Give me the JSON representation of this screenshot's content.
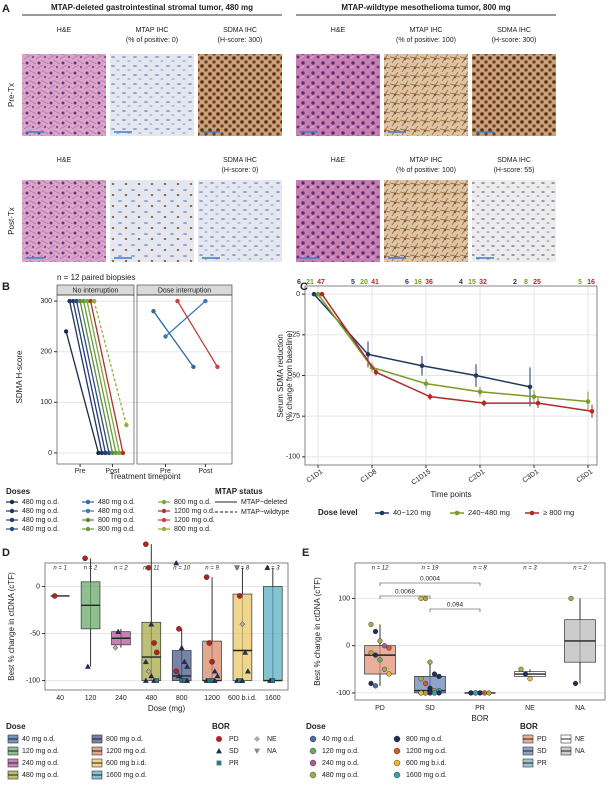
{
  "panel_a": {
    "label": "A",
    "groups": [
      {
        "title": "MTAP-deleted gastrointestinal stromal tumor, 480 mg"
      },
      {
        "title": "MTAP-wildtype mesothelioma tumor, 800 mg"
      }
    ],
    "rows": [
      {
        "label": "Pre-Tx",
        "cells": [
          [
            "H&E"
          ],
          [
            "MTAP IHC",
            "(% of positive: 0)"
          ],
          [
            "SDMA IHC",
            "(H-score: 300)"
          ],
          [
            "H&E"
          ],
          [
            "MTAP IHC",
            "(% of positive: 100)"
          ],
          [
            "SDMA IHC",
            "(H-score: 300)"
          ]
        ]
      },
      {
        "label": "Post-Tx",
        "cells": [
          [
            "H&E"
          ],
          [],
          [
            "SDMA IHC",
            "(H-score: 0)"
          ],
          [
            "H&E"
          ],
          [
            "MTAP IHC",
            "(% of positive: 100)"
          ],
          [
            "SDMA IHC",
            "(H-score: 55)"
          ]
        ]
      }
    ]
  },
  "chart_data": [
    {
      "type": "paired-line",
      "label": "B",
      "subtitle": "n = 12 paired biopsies",
      "facets": [
        "No interruption",
        "Dose interruption"
      ],
      "categories": [
        "Pre",
        "Post"
      ],
      "xlabel": "Treatment timepoint",
      "ylabel": "SDMA H-score",
      "ylim": [
        -10,
        310
      ],
      "yticks": [
        0,
        100,
        200,
        300
      ],
      "grid": true,
      "legend_title": "Doses",
      "status_title": "MTAP status",
      "statuses": [
        {
          "name": "MTAP−deleted",
          "dash": "solid"
        },
        {
          "name": "MTAP−wildtype",
          "dash": "dashed"
        }
      ],
      "series": [
        {
          "name": "480 mg o.d.",
          "color": "#1b2a4a",
          "facet": 0,
          "status": 0,
          "values": [
            240,
            0
          ]
        },
        {
          "name": "480 mg o.d.",
          "color": "#1f3563",
          "facet": 0,
          "status": 0,
          "values": [
            300,
            0
          ]
        },
        {
          "name": "480 mg o.d.",
          "color": "#233d72",
          "facet": 0,
          "status": 0,
          "values": [
            300,
            0
          ]
        },
        {
          "name": "480 mg o.d.",
          "color": "#2a4a85",
          "facet": 0,
          "status": 0,
          "values": [
            300,
            0
          ]
        },
        {
          "name": "480 mg o.d.",
          "color": "#2f6aa0",
          "facet": 1,
          "status": 0,
          "values": [
            280,
            170
          ]
        },
        {
          "name": "480 mg o.d.",
          "color": "#3a7ab0",
          "facet": 1,
          "status": 0,
          "values": [
            230,
            300
          ]
        },
        {
          "name": "800 mg o.d.",
          "color": "#5a8a3a",
          "facet": 0,
          "status": 0,
          "values": [
            300,
            0
          ]
        },
        {
          "name": "800 mg o.d.",
          "color": "#6a9a3a",
          "facet": 0,
          "status": 0,
          "values": [
            300,
            0
          ]
        },
        {
          "name": "800 mg o.d.",
          "color": "#7aaa3a",
          "facet": 0,
          "status": 0,
          "values": [
            300,
            0
          ]
        },
        {
          "name": "1200 mg o.d.",
          "color": "#b03030",
          "facet": 0,
          "status": 0,
          "values": [
            300,
            0
          ]
        },
        {
          "name": "1200 mg o.d.",
          "color": "#c84040",
          "facet": 1,
          "status": 0,
          "values": [
            300,
            170
          ]
        },
        {
          "name": "800 mg o.d.",
          "color": "#9aab3c",
          "facet": 0,
          "status": 1,
          "values": [
            300,
            55
          ]
        }
      ]
    },
    {
      "type": "line",
      "label": "C",
      "categories": [
        "C1D1",
        "C1D8",
        "C1D15",
        "C2D1",
        "C3D1",
        "C5D1"
      ],
      "xlabel": "Time points",
      "ylabel": [
        "Serum SDMA reduction",
        "(% change from baseline)"
      ],
      "ylim": [
        -105,
        5
      ],
      "yticks": [
        0,
        -25,
        -50,
        -75,
        -100
      ],
      "grid": true,
      "legend_title": "Dose level",
      "series": [
        {
          "name": "40−120 mg",
          "color": "#1f3a5f",
          "values": [
            0,
            -37,
            -44,
            -50,
            -57,
            null
          ],
          "errors": [
            0,
            8,
            6,
            7,
            12,
            null
          ],
          "n": [
            6,
            5,
            6,
            4,
            2,
            null
          ]
        },
        {
          "name": "240−480 mg",
          "color": "#7a9a2a",
          "values": [
            0,
            -45,
            -55,
            -60,
            -63,
            -66
          ],
          "errors": [
            0,
            3,
            3,
            3,
            4,
            6
          ],
          "n": [
            21,
            20,
            16,
            15,
            8,
            5
          ]
        },
        {
          "name": "≥ 800 mg",
          "color": "#b02a2a",
          "values": [
            0,
            -48,
            -63,
            -67,
            -67,
            -72
          ],
          "errors": [
            0,
            2,
            2,
            2,
            3,
            4
          ],
          "n": [
            47,
            41,
            36,
            32,
            25,
            16
          ]
        }
      ]
    },
    {
      "type": "box",
      "label": "D",
      "categories": [
        "40",
        "120",
        "240",
        "480",
        "800",
        "1200",
        "600 b.i.d.",
        "1600"
      ],
      "n_labels": [
        "n = 1",
        "n = 2",
        "n = 2",
        "n = 11",
        "n = 10",
        "n = 9",
        "n = 8",
        "n = 3"
      ],
      "xlabel": "Dose (mg)",
      "ylabel": "Best % change in ctDNA (cTF)",
      "ylim": [
        -110,
        25
      ],
      "yticks": [
        -100,
        -50,
        0
      ],
      "boxes": [
        [
          -10,
          -10,
          -10,
          -10,
          -10
        ],
        [
          -85,
          -45,
          -20,
          5,
          30
        ],
        [
          -65,
          -62,
          -55,
          -48,
          -45
        ],
        [
          -100,
          -100,
          -75,
          -38,
          45
        ],
        [
          -100,
          -100,
          -95,
          -68,
          -45
        ],
        [
          -100,
          -100,
          -100,
          -58,
          10
        ],
        [
          -100,
          -100,
          -68,
          -8,
          20
        ],
        [
          -100,
          -100,
          -100,
          0,
          20
        ]
      ],
      "colors": [
        "#4a6fa5",
        "#6aa86a",
        "#b05a9a",
        "#a8a84a",
        "#4a5a8a",
        "#d88a6a",
        "#e8c86a",
        "#5ab0c0"
      ],
      "point_values": [
        [
          -10
        ],
        [
          30,
          -85
        ],
        [
          -65,
          -48
        ],
        [
          45,
          20,
          -40,
          -60,
          -70,
          -80,
          -90,
          -95,
          -100,
          -100,
          -100
        ],
        [
          25,
          -45,
          -65,
          -80,
          -85,
          -90,
          -95,
          -100,
          -100,
          -100
        ],
        [
          10,
          -60,
          -80,
          -90,
          -95,
          -100,
          -100,
          -100,
          -100
        ],
        [
          20,
          -10,
          -40,
          -70,
          -90,
          -100,
          -100,
          -100
        ],
        [
          20,
          -100,
          -100
        ]
      ],
      "point_bor": [
        [
          0
        ],
        [
          0,
          1
        ],
        [
          3,
          1
        ],
        [
          0,
          0,
          1,
          0,
          0,
          1,
          3,
          1,
          1,
          2,
          1
        ],
        [
          1,
          0,
          1,
          1,
          1,
          0,
          1,
          2,
          2,
          1
        ],
        [
          0,
          0,
          0,
          1,
          1,
          1,
          2,
          2,
          1
        ],
        [
          4,
          0,
          3,
          1,
          1,
          1,
          2,
          1
        ],
        [
          1,
          1,
          2
        ]
      ],
      "legend_title": "Dose",
      "dose_names": [
        "40 mg o.d.",
        "120 mg o.d.",
        "240 mg o.d.",
        "480 mg o.d.",
        "800 mg o.d.",
        "1200 mg o.d.",
        "600 mg b.i.d.",
        "1600 mg o.d."
      ],
      "bor_title": "BOR",
      "bor_names": [
        "PD",
        "SD",
        "PR",
        "NE",
        "NA"
      ],
      "bor_shapes": [
        "circle",
        "triangle",
        "square",
        "diamond",
        "triangle-down"
      ],
      "bor_colors": [
        "#b22222",
        "#1f2f5a",
        "#2a7a8a",
        "#aaaaaa",
        "#888888"
      ]
    },
    {
      "type": "box",
      "label": "E",
      "categories": [
        "PD",
        "SD",
        "PR",
        "NE",
        "NA"
      ],
      "n_labels": [
        "n = 12",
        "n = 19",
        "n = 8",
        "n = 3",
        "n = 2"
      ],
      "xlabel": "BOR",
      "ylabel": "Best % change in ctDNA (cTF)",
      "ylim": [
        -115,
        175
      ],
      "yticks": [
        -100,
        0,
        100
      ],
      "boxes": [
        [
          -85,
          -60,
          -20,
          0,
          45
        ],
        [
          -100,
          -100,
          -95,
          -65,
          -35
        ],
        [
          -100,
          -100,
          -100,
          -100,
          -100
        ],
        [
          -70,
          -65,
          -60,
          -55,
          -50
        ],
        [
          -80,
          -35,
          10,
          55,
          100
        ]
      ],
      "colors": [
        "#e0967a",
        "#6a86b8",
        "#7fb0c0",
        "#ffffff",
        "#bbbbbb"
      ],
      "point_values": [
        [
          45,
          30,
          10,
          0,
          -5,
          -15,
          -20,
          -30,
          -50,
          -60,
          -80,
          -85
        ],
        [
          100,
          100,
          -35,
          -60,
          -65,
          -70,
          -80,
          -90,
          -95,
          -95,
          -100,
          -100,
          -100,
          -100,
          -100,
          -100,
          -100,
          -100,
          -100
        ],
        [
          -100,
          -100,
          -100,
          -100,
          -100,
          -100,
          -100,
          -100
        ],
        [
          -50,
          -60,
          -70
        ],
        [
          100,
          -80
        ]
      ],
      "point_dose": [
        [
          3,
          4,
          3,
          2,
          5,
          3,
          4,
          1,
          3,
          6,
          4,
          0
        ],
        [
          6,
          3,
          3,
          4,
          4,
          3,
          5,
          4,
          3,
          7,
          4,
          4,
          3,
          5,
          4,
          6,
          3,
          4,
          7
        ],
        [
          3,
          4,
          4,
          5,
          3,
          4,
          7,
          4
        ],
        [
          3,
          4,
          6
        ],
        [
          3,
          4
        ]
      ],
      "brackets": [
        {
          "between": [
            0,
            1
          ],
          "label": "0.0068"
        },
        {
          "between": [
            0,
            2
          ],
          "label": "0.0004"
        },
        {
          "between": [
            1,
            2
          ],
          "label": "0.094"
        }
      ],
      "legend_title": "Dose",
      "dose_names": [
        "40 mg o.d.",
        "120 mg o.d.",
        "240 mg o.d.",
        "480 mg o.d.",
        "800 mg o.d.",
        "1200 mg o.d.",
        "600 mg b.i.d.",
        "1600 mg o.d."
      ],
      "dose_colors": [
        "#4a6fa5",
        "#6aa86a",
        "#b05a9a",
        "#a8a84a",
        "#1f2f5a",
        "#d05a2a",
        "#e8b83a",
        "#3aa0b0"
      ],
      "bor_title": "BOR"
    }
  ]
}
